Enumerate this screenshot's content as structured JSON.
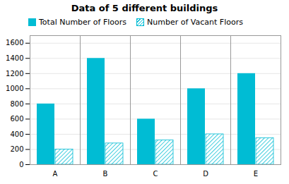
{
  "chart_data": {
    "type": "bar",
    "title": "Data of 5 different buildings",
    "categories": [
      "A",
      "B",
      "C",
      "D",
      "E"
    ],
    "series": [
      {
        "name": "Total Number of Floors",
        "color": "#00bcd4",
        "values": [
          800,
          1400,
          600,
          1000,
          1200
        ]
      },
      {
        "name": "Number of Vacant Floors",
        "color": "#00bcd4",
        "values": [
          200,
          280,
          320,
          400,
          350
        ]
      }
    ],
    "ylim": [
      0,
      1700
    ],
    "yticks": [
      0,
      200,
      400,
      600,
      800,
      1000,
      1200,
      1400,
      1600
    ],
    "grid": true,
    "legend": "top"
  }
}
